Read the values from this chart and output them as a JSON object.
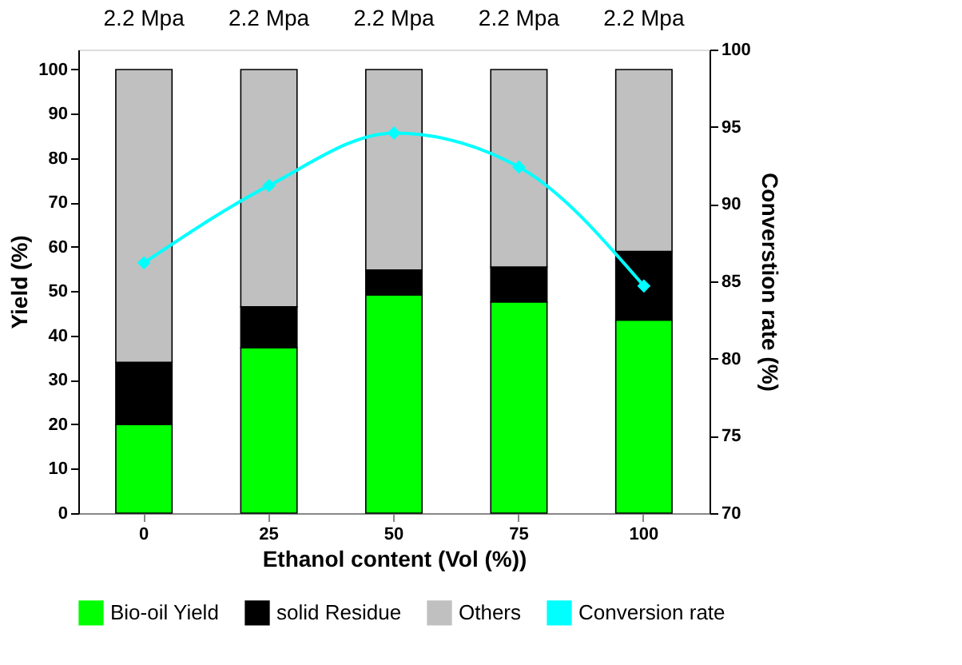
{
  "chart_data": {
    "type": "bar",
    "stacked": true,
    "xlabel": "Ethanol content (Vol (%))",
    "ylabel": "Yield (%)",
    "y2label": "Converstion rate (%)",
    "categories": [
      "0",
      "25",
      "50",
      "75",
      "100"
    ],
    "series": [
      {
        "name": "Bio-oil Yield",
        "color": "#00ff00",
        "values": [
          20,
          37.3,
          49.2,
          47.6,
          43.5
        ]
      },
      {
        "name": "solid Residue",
        "color": "#000000",
        "values": [
          14,
          9.2,
          5.6,
          7.9,
          15.5
        ]
      },
      {
        "name": "Others",
        "color": "#c0c0c0",
        "values": [
          66,
          53.5,
          45.2,
          44.5,
          41
        ]
      },
      {
        "name": "Conversion rate",
        "type": "line",
        "axis": "y2",
        "color": "#00ffff",
        "marker": "diamond",
        "values": [
          86.2,
          91.2,
          94.6,
          92.4,
          84.7
        ]
      }
    ],
    "ylim": [
      0,
      104.5
    ],
    "yticks": [
      0,
      10,
      20,
      30,
      40,
      50,
      60,
      70,
      80,
      90,
      100
    ],
    "y2lim": [
      70,
      100
    ],
    "y2ticks": [
      70,
      75,
      80,
      85,
      90,
      95,
      100
    ],
    "grid": false,
    "legend": "bottom",
    "annotations": [
      "2.2 Mpa",
      "2.2 Mpa",
      "2.2 Mpa",
      "2.2 Mpa",
      "2.2 Mpa"
    ]
  }
}
